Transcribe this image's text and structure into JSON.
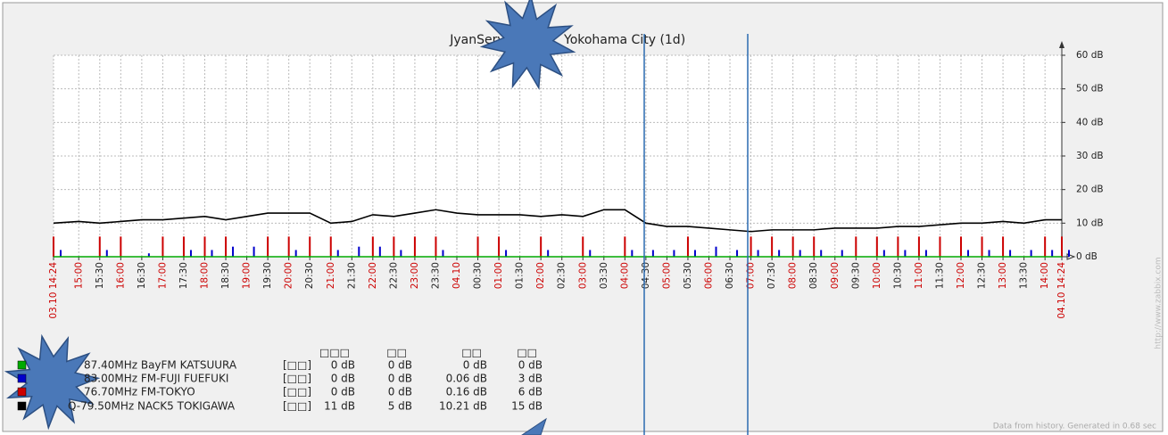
{
  "chart_data": {
    "type": "line",
    "title_parts": [
      "JyanServer",
      "Yokohama City  (1d)"
    ],
    "x": [
      "03.10 14:24",
      "15:00",
      "15:30",
      "16:00",
      "16:30",
      "17:00",
      "17:30",
      "18:00",
      "18:30",
      "19:00",
      "19:30",
      "20:00",
      "20:30",
      "21:00",
      "21:30",
      "22:00",
      "22:30",
      "23:00",
      "23:30",
      "04.10",
      "00:30",
      "01:00",
      "01:30",
      "02:00",
      "02:30",
      "03:00",
      "03:30",
      "04:00",
      "04:30",
      "05:00",
      "05:30",
      "06:00",
      "06:30",
      "07:00",
      "07:30",
      "08:00",
      "08:30",
      "09:00",
      "09:30",
      "10:00",
      "10:30",
      "11:00",
      "11:30",
      "12:00",
      "12:30",
      "13:00",
      "13:30",
      "14:00",
      "04.10 14:24"
    ],
    "ylim": [
      0,
      60
    ],
    "yticks": [
      {
        "value": 0,
        "label": "0 dB"
      },
      {
        "value": 10,
        "label": "10 dB"
      },
      {
        "value": 20,
        "label": "20 dB"
      },
      {
        "value": 30,
        "label": "30 dB"
      },
      {
        "value": 40,
        "label": "40 dB"
      },
      {
        "value": 50,
        "label": "50 dB"
      },
      {
        "value": 60,
        "label": "60 dB"
      }
    ],
    "grid": true,
    "series": [
      {
        "name": "87.40MHz BayFM KATSUURA",
        "color": "#00aa00",
        "style": "line",
        "values": [
          0,
          0,
          0,
          0,
          0,
          0,
          0,
          0,
          0,
          0,
          0,
          0,
          0,
          0,
          0,
          0,
          0,
          0,
          0,
          0,
          0,
          0,
          0,
          0,
          0,
          0,
          0,
          0,
          0,
          0,
          0,
          0,
          0,
          0,
          0,
          0,
          0,
          0,
          0,
          0,
          0,
          0,
          0,
          0,
          0,
          0,
          0,
          0,
          0
        ]
      },
      {
        "name": "83.00MHz FM-FUJI FUEFUKI",
        "color": "#0000cc",
        "style": "impulse",
        "values": [
          2,
          0,
          2,
          0,
          1,
          0,
          2,
          2,
          3,
          3,
          0,
          2,
          0,
          2,
          3,
          3,
          2,
          0,
          2,
          0,
          0,
          2,
          0,
          2,
          0,
          2,
          0,
          2,
          2,
          2,
          2,
          3,
          2,
          2,
          2,
          2,
          2,
          2,
          0,
          2,
          2,
          2,
          0,
          2,
          2,
          2,
          2,
          2,
          2
        ]
      },
      {
        "name": "76.70MHz FM-TOKYO",
        "color": "#cc0000",
        "style": "impulse",
        "values": [
          6,
          0,
          6,
          6,
          0,
          6,
          6,
          6,
          6,
          0,
          6,
          6,
          6,
          6,
          0,
          6,
          6,
          6,
          6,
          0,
          6,
          6,
          0,
          6,
          0,
          6,
          0,
          6,
          0,
          0,
          6,
          0,
          0,
          6,
          6,
          6,
          6,
          0,
          6,
          6,
          6,
          6,
          6,
          6,
          6,
          6,
          0,
          6,
          6
        ]
      },
      {
        "name": "Q-79.50MHz NACK5 TOKIGAWA",
        "color": "#000000",
        "style": "line",
        "values": [
          10,
          10.5,
          10,
          10.5,
          11,
          11,
          11.5,
          12,
          11,
          12,
          13,
          13,
          13,
          10,
          10.5,
          12.5,
          12,
          13,
          14,
          13,
          12.5,
          12.5,
          12.5,
          12,
          12.5,
          12,
          14,
          14,
          10,
          9,
          9,
          8.5,
          8,
          7.5,
          8,
          8,
          8,
          8.5,
          8.5,
          8.5,
          9,
          9,
          9.5,
          10,
          10,
          10.5,
          10,
          11,
          11
        ]
      }
    ],
    "legend_table": {
      "headers": [
        "□□□",
        "□□",
        "□□",
        "□□"
      ],
      "func": "[□□]",
      "rows": [
        [
          "0 dB",
          "0 dB",
          "0 dB",
          "0 dB"
        ],
        [
          "0 dB",
          "0 dB",
          "0.06 dB",
          "3 dB"
        ],
        [
          "0 dB",
          "0 dB",
          "0.16 dB",
          "6 dB"
        ],
        [
          "11 dB",
          "5 dB",
          "10.21 dB",
          "15 dB"
        ]
      ]
    },
    "footer": "Data from history. Generated in 0.68 sec",
    "watermark": "http://www.zabbix.com"
  }
}
